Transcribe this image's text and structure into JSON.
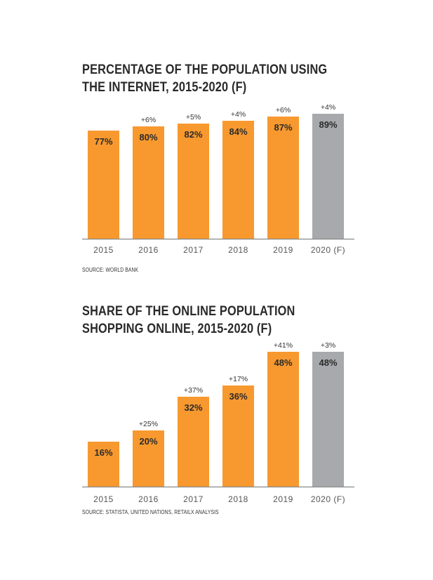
{
  "colors": {
    "actual": "#f7992f",
    "forecast": "#a7a9ac",
    "title": "#2a2a2a",
    "baseline": "#8a8a8a"
  },
  "chart_data": [
    {
      "type": "bar",
      "title_line1": "PERCENTAGE OF THE POPULATION USING",
      "title_line2": "THE INTERNET, 2015-2020 (F)",
      "source": "SOURCE: WORLD BANK",
      "categories": [
        "2015",
        "2016",
        "2017",
        "2018",
        "2019",
        "2020 (F)"
      ],
      "values": [
        77,
        80,
        82,
        84,
        87,
        89
      ],
      "value_labels": [
        "77%",
        "80%",
        "82%",
        "84%",
        "87%",
        "89%"
      ],
      "change_labels": [
        "",
        "+6%",
        "+5%",
        "+4%",
        "+6%",
        "+4%"
      ],
      "forecast": [
        false,
        false,
        false,
        false,
        false,
        true
      ],
      "ylim": [
        0,
        100
      ],
      "grid": false,
      "legend": "none"
    },
    {
      "type": "bar",
      "title_line1": "SHARE OF THE ONLINE POPULATION",
      "title_line2": "SHOPPING ONLINE, 2015-2020 (F)",
      "source": "SOURCE: STATISTA, UNITED NATIONS, RETAILX ANALYSIS",
      "categories": [
        "2015",
        "2016",
        "2017",
        "2018",
        "2019",
        "2020 (F)"
      ],
      "values": [
        16,
        20,
        32,
        36,
        48,
        48
      ],
      "value_labels": [
        "16%",
        "20%",
        "32%",
        "36%",
        "48%",
        "48%"
      ],
      "change_labels": [
        "",
        "+25%",
        "+37%",
        "+17%",
        "+41%",
        "+3%"
      ],
      "forecast": [
        false,
        false,
        false,
        false,
        false,
        true
      ],
      "ylim": [
        0,
        49
      ],
      "grid": false,
      "legend": "none"
    }
  ]
}
